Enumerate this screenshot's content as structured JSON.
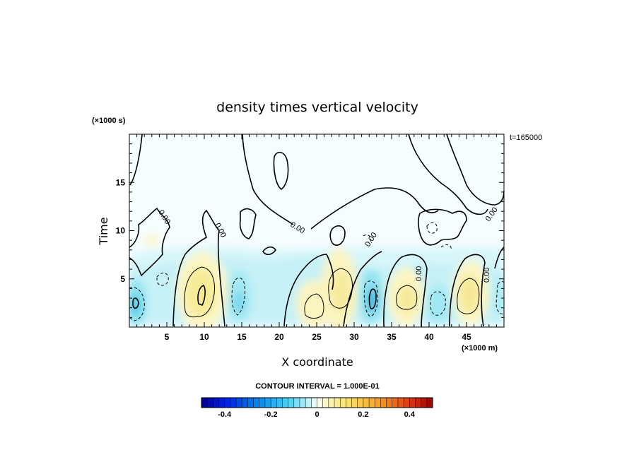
{
  "chart_data": {
    "type": "heatmap",
    "title": "density times vertical velocity",
    "xlabel": "X coordinate",
    "ylabel": "Time",
    "x_unit": "(×1000 m)",
    "y_unit": "(×1000 s)",
    "time_stamp": "t=165000",
    "xlim": [
      0,
      50
    ],
    "ylim": [
      0,
      20
    ],
    "x_ticks": [
      5,
      10,
      15,
      20,
      25,
      30,
      35,
      40,
      45
    ],
    "y_ticks": [
      5,
      10,
      15
    ],
    "contour_interval_label": "CONTOUR INTERVAL = 1.000E-01",
    "contour_label": "0.00",
    "colorbar": {
      "min": -0.5,
      "max": 0.5,
      "step": 0.025,
      "ticks": [
        -0.4,
        -0.2,
        0,
        0.2,
        0.4
      ],
      "tick_labels": [
        "-0.4",
        "-0.2",
        "0",
        "0.2",
        "0.4"
      ]
    },
    "features": [
      {
        "name": "negative-cell",
        "x": 1.0,
        "y": 2.5,
        "value": -0.25
      },
      {
        "name": "positive-cell",
        "x": 9.5,
        "y": 3.5,
        "value": 0.22
      },
      {
        "name": "negative-cell",
        "x": 14.5,
        "y": 3.0,
        "value": -0.15
      },
      {
        "name": "positive-cell",
        "x": 25.0,
        "y": 2.5,
        "value": 0.12
      },
      {
        "name": "positive-cell",
        "x": 28.5,
        "y": 4.5,
        "value": 0.14
      },
      {
        "name": "negative-cell",
        "x": 32.5,
        "y": 2.5,
        "value": -0.28
      },
      {
        "name": "positive-cell",
        "x": 37.0,
        "y": 3.0,
        "value": 0.16
      },
      {
        "name": "negative-cell",
        "x": 41.5,
        "y": 2.0,
        "value": -0.12
      },
      {
        "name": "positive-cell",
        "x": 45.5,
        "y": 3.0,
        "value": 0.18
      },
      {
        "name": "negative-cell",
        "x": 49.5,
        "y": 3.0,
        "value": -0.1
      }
    ]
  }
}
